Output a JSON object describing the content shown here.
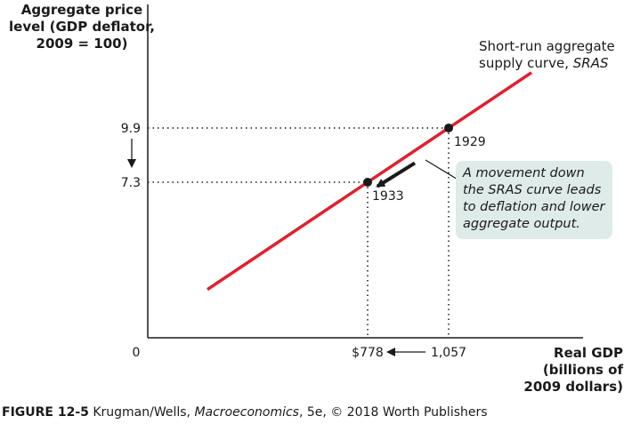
{
  "chart_data": {
    "type": "line",
    "ylabel": "Aggregate price level (GDP deflator, 2009 = 100)",
    "ylabel_lines": [
      "Aggregate price",
      "level (GDP deflator,",
      "2009 = 100)"
    ],
    "xlabel": "Real GDP (billions of 2009 dollars)",
    "xlabel_lines": [
      "Real GDP",
      "(billions of",
      "2009 dollars)"
    ],
    "origin_label": "0",
    "series": [
      {
        "name": "Short-run aggregate supply curve, SRAS",
        "label_line1": "Short-run aggregate",
        "label_line2_prefix": "supply curve, ",
        "label_line2_italic": "SRAS",
        "color": "#e0202e"
      }
    ],
    "points": [
      {
        "label": "1929",
        "x": 1057,
        "y": 9.9,
        "x_tick": "1,057",
        "y_tick": "9.9"
      },
      {
        "label": "1933",
        "x": 778,
        "y": 7.3,
        "x_tick": "$778",
        "y_tick": "7.3"
      }
    ],
    "annotation": {
      "lines": [
        "A movement down",
        "the SRAS curve leads",
        "to deflation and lower",
        "aggregate output."
      ],
      "background": "#deebe8"
    },
    "grid": false
  },
  "caption": {
    "figure": "FIGURE 12-5",
    "authors": " Krugman/Wells, ",
    "book": "Macroeconomics",
    "rest": ", 5e, © 2018 Worth Publishers"
  }
}
